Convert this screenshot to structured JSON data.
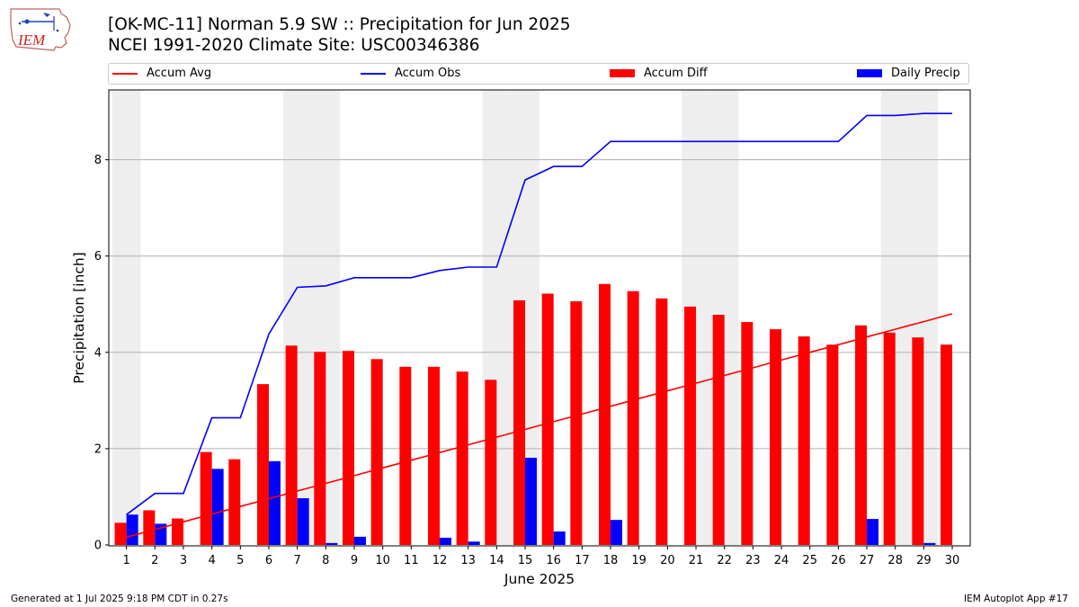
{
  "header": {
    "title_line1": "[OK-MC-11] Norman 5.9 SW :: Precipitation for Jun 2025",
    "title_line2": "NCEI 1991-2020 Climate Site: USC00346386",
    "logo_text": "IEM"
  },
  "footer": {
    "left": "Generated at 1 Jul 2025 9:18 PM CDT in 0.27s",
    "right": "IEM Autoplot App #17"
  },
  "colors": {
    "avg": "#ff0000",
    "obs": "#0000ff",
    "diff": "#ff0000",
    "daily": "#0000ff",
    "weekend_band": "#eeeeee",
    "grid": "#b0b0b0"
  },
  "chart_data": {
    "type": "bar",
    "xlabel": "June 2025",
    "ylabel": "Precipitation [inch]",
    "x": [
      1,
      2,
      3,
      4,
      5,
      6,
      7,
      8,
      9,
      10,
      11,
      12,
      13,
      14,
      15,
      16,
      17,
      18,
      19,
      20,
      21,
      22,
      23,
      24,
      25,
      26,
      27,
      28,
      29,
      30
    ],
    "x_tick_labels": [
      "1",
      "2",
      "3",
      "4",
      "5",
      "6",
      "7",
      "8",
      "9",
      "10",
      "11",
      "12",
      "13",
      "14",
      "15",
      "16",
      "17",
      "18",
      "19",
      "20",
      "21",
      "22",
      "23",
      "24",
      "25",
      "26",
      "27",
      "28",
      "29",
      "30"
    ],
    "y_ticks": [
      0,
      2,
      4,
      6,
      8
    ],
    "ylim": [
      0,
      9.45
    ],
    "grid": "y",
    "legend_placement": "top",
    "weekend_days": [
      1,
      7,
      8,
      14,
      15,
      21,
      22,
      28,
      29
    ],
    "series": [
      {
        "name": "Accum Avg",
        "kind": "line",
        "values": [
          0.16,
          0.32,
          0.48,
          0.64,
          0.8,
          0.96,
          1.12,
          1.28,
          1.44,
          1.6,
          1.76,
          1.92,
          2.08,
          2.24,
          2.4,
          2.56,
          2.72,
          2.88,
          3.04,
          3.2,
          3.36,
          3.52,
          3.68,
          3.84,
          4.0,
          4.16,
          4.32,
          4.48,
          4.64,
          4.8
        ]
      },
      {
        "name": "Accum Obs",
        "kind": "line",
        "values": [
          0.63,
          1.07,
          1.07,
          2.64,
          2.64,
          4.38,
          5.35,
          5.38,
          5.55,
          5.55,
          5.55,
          5.7,
          5.77,
          5.77,
          7.58,
          7.86,
          7.86,
          8.38,
          8.38,
          8.38,
          8.38,
          8.38,
          8.38,
          8.38,
          8.38,
          8.38,
          8.92,
          8.92,
          8.96,
          8.96
        ]
      },
      {
        "name": "Accum Diff",
        "kind": "bar",
        "values": [
          0.46,
          0.72,
          0.55,
          1.93,
          1.78,
          3.34,
          4.14,
          4.01,
          4.03,
          3.86,
          3.7,
          3.7,
          3.6,
          3.43,
          5.08,
          5.22,
          5.06,
          5.42,
          5.27,
          5.12,
          4.95,
          4.78,
          4.63,
          4.48,
          4.33,
          4.16,
          4.56,
          4.41,
          4.31,
          4.16
        ]
      },
      {
        "name": "Daily Precip",
        "kind": "bar",
        "values": [
          0.63,
          0.44,
          0.0,
          1.58,
          0.0,
          1.74,
          0.97,
          0.04,
          0.17,
          0.0,
          0.0,
          0.15,
          0.07,
          0.0,
          1.81,
          0.28,
          0.0,
          0.52,
          0.0,
          0.0,
          0.0,
          0.0,
          0.0,
          0.0,
          0.0,
          0.0,
          0.54,
          0.0,
          0.04,
          0.0
        ]
      }
    ]
  }
}
